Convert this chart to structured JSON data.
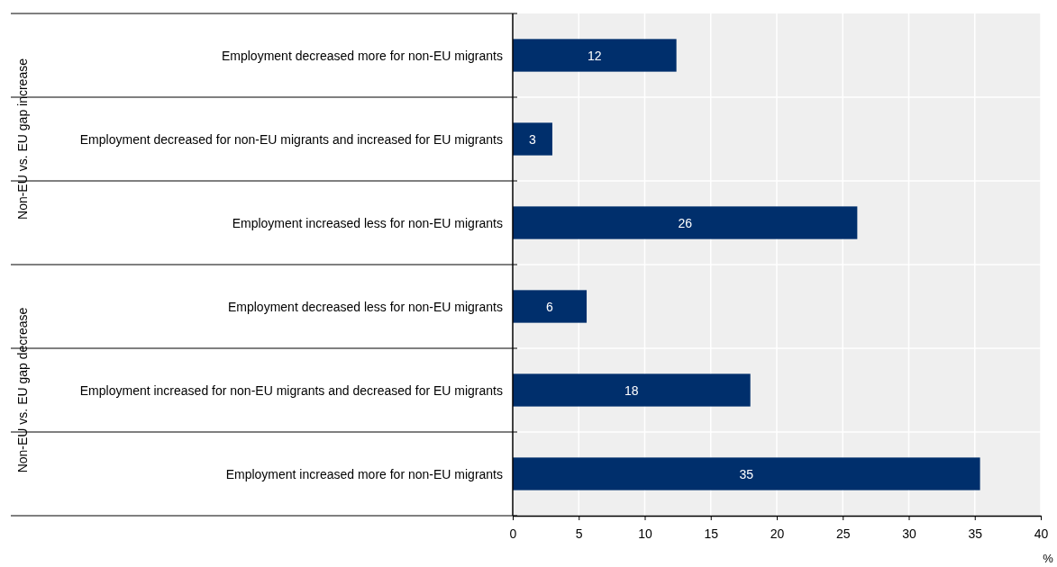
{
  "chart_data": {
    "type": "bar",
    "orientation": "horizontal",
    "xlabel": "%",
    "categories": [
      "Employment decreased more for non-EU migrants",
      "Employment decreased for non-EU migrants and increased for EU migrants",
      "Employment increased less for non-EU migrants",
      "Employment decreased less for non-EU migrants",
      "Employment increased for non-EU migrants and decreased for EU migrants",
      "Employment increased more for non-EU migrants"
    ],
    "values": [
      12.4,
      3.0,
      26.1,
      5.6,
      18.0,
      35.4
    ],
    "value_labels": [
      "12",
      "3",
      "26",
      "6",
      "18",
      "35"
    ],
    "color": "#002f6c",
    "xlim": [
      0,
      40
    ],
    "xticks": [
      0,
      5,
      10,
      15,
      20,
      25,
      30,
      35,
      40
    ],
    "grid": true,
    "annotations": [
      "Non-EU vs. EU gap increase",
      "Non-EU vs. EU gap decrease"
    ]
  }
}
